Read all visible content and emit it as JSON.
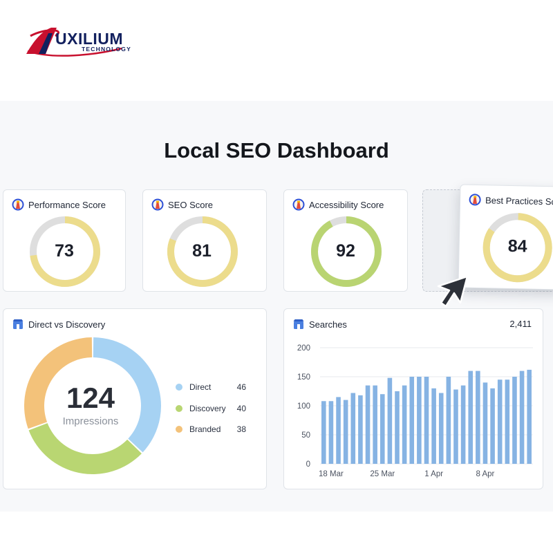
{
  "logo": {
    "word": "UXILIUM",
    "sub": "TECHNOLOGY"
  },
  "dashboard": {
    "title": "Local SEO Dashboard"
  },
  "scores": [
    {
      "label": "Performance Score",
      "value": 73,
      "fraction": 0.73
    },
    {
      "label": "SEO Score",
      "value": 81,
      "fraction": 0.81
    },
    {
      "label": "Accessibility Score",
      "value": 92,
      "fraction": 0.92
    },
    {
      "label": "Best Practices Sco",
      "value": 84,
      "fraction": 0.84
    }
  ],
  "colors": {
    "score_ring": "#ecdc8c",
    "score_ring_good": "#b9d472",
    "ring_track": "#dedede",
    "direct": "#a6d2f3",
    "discovery": "#b9d672",
    "branded": "#f3c27a",
    "bars": "#86b3e3"
  },
  "direct_vs_discovery": {
    "title": "Direct vs Discovery",
    "center_value": "124",
    "center_label": "Impressions",
    "items": [
      {
        "label": "Direct",
        "value": 46
      },
      {
        "label": "Discovery",
        "value": 40
      },
      {
        "label": "Branded",
        "value": 38
      }
    ]
  },
  "searches": {
    "title": "Searches",
    "total": "2,411"
  },
  "chart_data": {
    "type": "bar",
    "yticks": [
      "200",
      "150",
      "100",
      "50",
      "0"
    ],
    "ylim": [
      0,
      200
    ],
    "xticks": [
      {
        "label": "18 Mar",
        "index": 1
      },
      {
        "label": "25 Mar",
        "index": 8
      },
      {
        "label": "1 Apr",
        "index": 15
      },
      {
        "label": "8 Apr",
        "index": 22
      }
    ],
    "values": [
      108,
      108,
      115,
      110,
      122,
      118,
      135,
      135,
      120,
      148,
      125,
      135,
      150,
      150,
      150,
      130,
      122,
      150,
      128,
      135,
      160,
      160,
      140,
      130,
      145,
      145,
      150,
      160,
      162
    ],
    "grid": true
  },
  "icons": {
    "lighthouse": "lighthouse-icon",
    "gbp": "store-icon",
    "cursor": "cursor-arrow-icon"
  }
}
